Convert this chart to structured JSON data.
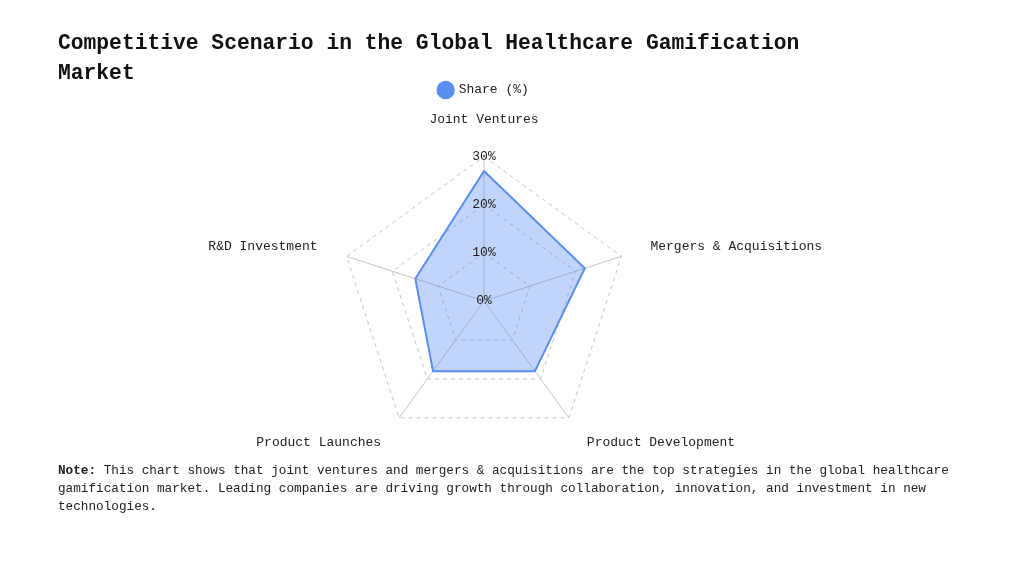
{
  "chart_data": {
    "type": "radar",
    "title": "Competitive Scenario in the Global Healthcare Gamification Market",
    "categories": [
      "Joint Ventures",
      "Mergers & Acquisitions",
      "Product Development",
      "Product Launches",
      "R&D Investment"
    ],
    "series": [
      {
        "name": "Share (%)",
        "color": "#5b8def",
        "values": [
          27,
          22,
          18,
          18,
          15
        ]
      }
    ],
    "ylim": [
      0,
      30
    ],
    "yticks": [
      {
        "value": 0,
        "label": "0%"
      },
      {
        "value": 10,
        "label": "10%"
      },
      {
        "value": 20,
        "label": "20%"
      },
      {
        "value": 30,
        "label": "30%"
      }
    ],
    "grid": true,
    "legend": "top",
    "marker": "none",
    "annotations": [
      "Note: This chart shows that joint ventures and mergers & acquisitions are the top strategies in the global healthcare gamification market. Leading companies are driving growth through collaboration, innovation, and investment in new technologies."
    ]
  }
}
